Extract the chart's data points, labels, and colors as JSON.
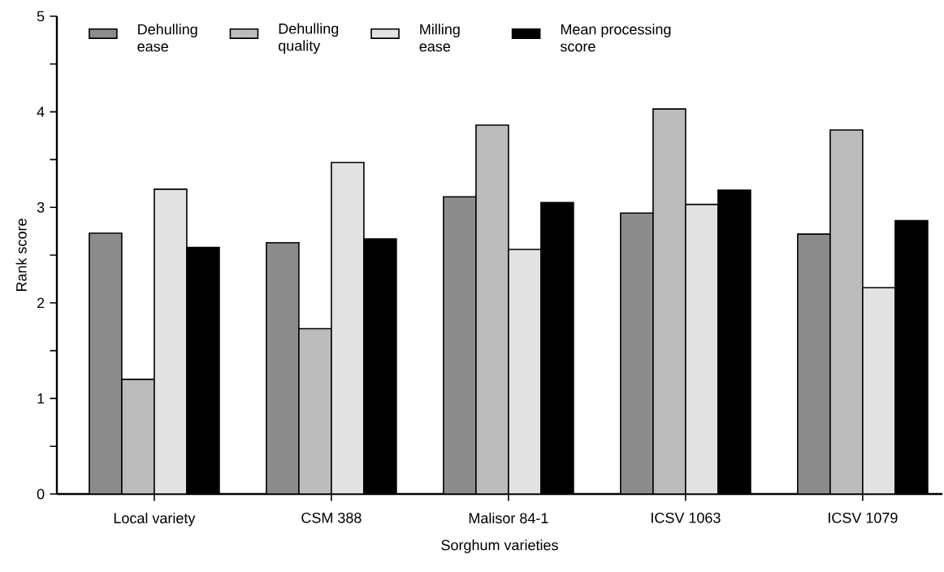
{
  "chart_data": {
    "type": "bar",
    "xlabel": "Sorghum varieties",
    "ylabel": "Rank score",
    "categories": [
      "Local variety",
      "CSM 388",
      "Malisor 84-1",
      "ICSV 1063",
      "ICSV 1079"
    ],
    "series": [
      {
        "name": "Dehulling ease",
        "color": "#8c8c8c",
        "values": [
          2.73,
          2.63,
          3.11,
          2.94,
          2.72
        ]
      },
      {
        "name": "Dehulling quality",
        "color": "#bcbcbc",
        "values": [
          1.2,
          1.73,
          3.86,
          4.03,
          3.81
        ]
      },
      {
        "name": "Milling ease",
        "color": "#e2e2e2",
        "values": [
          3.19,
          3.47,
          2.56,
          3.03,
          2.16
        ]
      },
      {
        "name": "Mean processing score",
        "color": "#000000",
        "values": [
          2.58,
          2.67,
          3.05,
          3.18,
          2.86
        ]
      }
    ],
    "ylim": [
      0,
      5
    ],
    "yticks": [
      0,
      {
        "value": 0.5,
        "label": null
      },
      1,
      {
        "value": 1.5,
        "label": null
      },
      2,
      {
        "value": 2.5,
        "label": null
      },
      3,
      {
        "value": 3.5,
        "label": null
      },
      4,
      {
        "value": 4.5,
        "label": null
      },
      5
    ],
    "legend": "top",
    "grid": false
  }
}
